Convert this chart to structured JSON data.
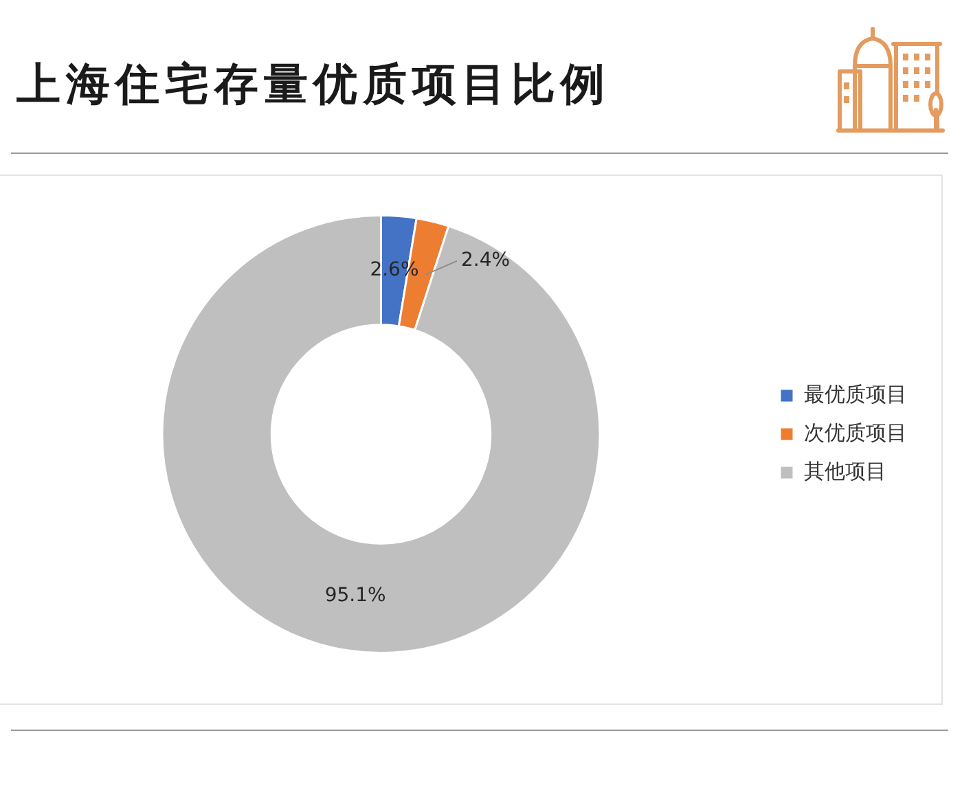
{
  "chart_data": {
    "type": "donut",
    "title": "上海住宅存量优质项目比例",
    "categories": [
      "最优质项目",
      "次优质项目",
      "其他项目"
    ],
    "values": [
      2.6,
      2.4,
      95.1
    ],
    "colors": [
      "#4472c4",
      "#ed7d31",
      "#bfbfbf"
    ],
    "value_labels": [
      "2.6%",
      "2.4%",
      "95.1%"
    ],
    "legend": "right"
  }
}
